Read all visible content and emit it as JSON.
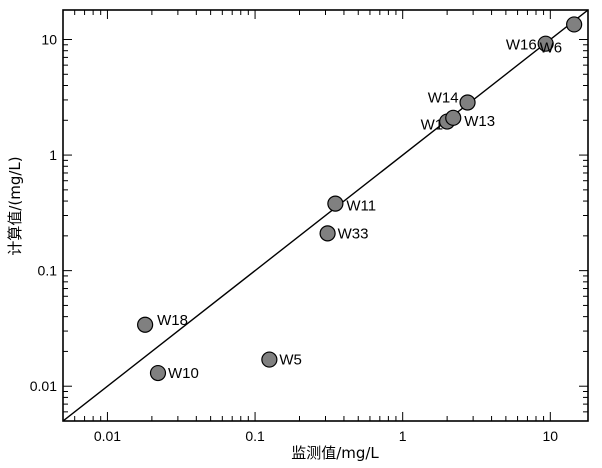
{
  "chart_data": {
    "type": "scatter",
    "xlabel": "监测值/mg/L",
    "ylabel": "计算值/(mg/L)",
    "xscale": "log",
    "yscale": "log",
    "xlim": [
      0.005,
      18
    ],
    "ylim": [
      0.005,
      18
    ],
    "xticks": [
      0.01,
      0.1,
      1,
      10
    ],
    "yticks": [
      0.01,
      0.1,
      1,
      10
    ],
    "xtick_labels": [
      "0.01",
      "0.1",
      "1",
      "10"
    ],
    "ytick_labels": [
      "0.01",
      "0.1",
      "1",
      "10"
    ],
    "grid": false,
    "legend": "none",
    "reference_line": "1:1",
    "point_color": "#808080",
    "points": [
      {
        "label": "W18",
        "x": 0.018,
        "y": 0.034
      },
      {
        "label": "W10",
        "x": 0.022,
        "y": 0.013
      },
      {
        "label": "W5",
        "x": 0.125,
        "y": 0.017
      },
      {
        "label": "W33",
        "x": 0.31,
        "y": 0.21
      },
      {
        "label": "W11",
        "x": 0.35,
        "y": 0.38
      },
      {
        "label": "W1",
        "x": 2.0,
        "y": 1.95
      },
      {
        "label": "W13",
        "x": 2.2,
        "y": 2.1
      },
      {
        "label": "W14",
        "x": 2.75,
        "y": 2.85
      },
      {
        "label": "W16",
        "x": 9.3,
        "y": 9.2
      },
      {
        "label": "W6",
        "x": 14.5,
        "y": 13.5
      }
    ]
  }
}
